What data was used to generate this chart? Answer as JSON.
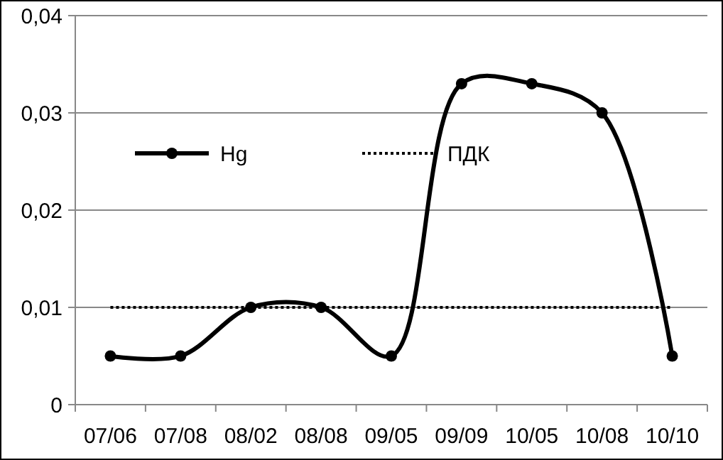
{
  "chart_data": {
    "type": "line",
    "categories": [
      "07/06",
      "07/08",
      "08/02",
      "08/08",
      "09/05",
      "09/09",
      "10/05",
      "10/08",
      "10/10"
    ],
    "series": [
      {
        "name": "Hg",
        "color": "#000000",
        "marker": "circle",
        "line_style": "solid",
        "values": [
          0.005,
          0.005,
          0.01,
          0.01,
          0.005,
          0.033,
          0.033,
          0.03,
          0.005
        ]
      },
      {
        "name": "ПДК",
        "color": "#000000",
        "marker": "none",
        "line_style": "dotted",
        "values": [
          0.01,
          0.01,
          0.01,
          0.01,
          0.01,
          0.01,
          0.01,
          0.01,
          0.01
        ]
      }
    ],
    "ylim": [
      0,
      0.04
    ],
    "yticks": [
      {
        "value": 0,
        "label": "0"
      },
      {
        "value": 0.01,
        "label": "0,01"
      },
      {
        "value": 0.02,
        "label": "0,02"
      },
      {
        "value": 0.03,
        "label": "0,03"
      },
      {
        "value": 0.04,
        "label": "0,04"
      }
    ],
    "grid": "y",
    "legend": "top left"
  }
}
